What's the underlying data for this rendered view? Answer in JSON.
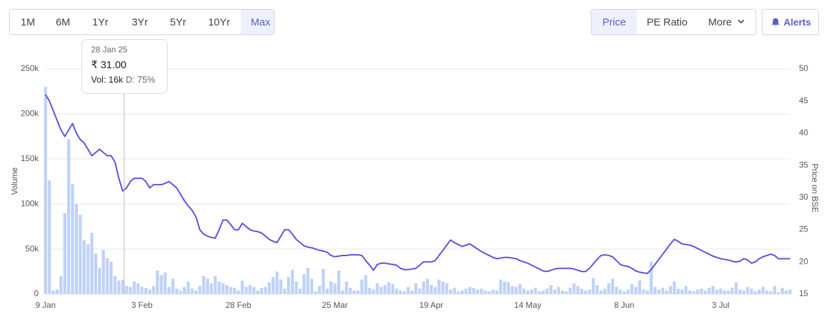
{
  "controls": {
    "ranges": [
      "1M",
      "6M",
      "1Yr",
      "3Yr",
      "5Yr",
      "10Yr",
      "Max"
    ],
    "views": [
      "Price",
      "PE Ratio",
      "More"
    ],
    "alerts": "Alerts"
  },
  "chart_data": {
    "type": "combo",
    "y_label": "Volume",
    "y2_label": "Price on BSE",
    "categories": [
      "9 Jan",
      null,
      null,
      null,
      null,
      null,
      null,
      null,
      null,
      null,
      null,
      null,
      null,
      null,
      null,
      null,
      null,
      null,
      null,
      null,
      null,
      null,
      null,
      null,
      null,
      "3 Feb",
      null,
      null,
      null,
      null,
      null,
      null,
      null,
      null,
      null,
      null,
      null,
      null,
      null,
      null,
      null,
      null,
      null,
      null,
      null,
      null,
      null,
      null,
      null,
      null,
      "28 Feb",
      null,
      null,
      null,
      null,
      null,
      null,
      null,
      null,
      null,
      null,
      null,
      null,
      null,
      null,
      null,
      null,
      null,
      null,
      null,
      null,
      null,
      null,
      null,
      null,
      "25 Mar",
      null,
      null,
      null,
      null,
      null,
      null,
      null,
      null,
      null,
      null,
      null,
      null,
      null,
      null,
      null,
      null,
      null,
      null,
      null,
      null,
      null,
      null,
      null,
      null,
      "19 Apr",
      null,
      null,
      null,
      null,
      null,
      null,
      null,
      null,
      null,
      null,
      null,
      null,
      null,
      null,
      null,
      null,
      null,
      null,
      null,
      null,
      null,
      null,
      null,
      null,
      "14 May",
      null,
      null,
      null,
      null,
      null,
      null,
      null,
      null,
      null,
      null,
      null,
      null,
      null,
      null,
      null,
      null,
      null,
      null,
      null,
      null,
      null,
      null,
      null,
      null,
      "8 Jun",
      null,
      null,
      null,
      null,
      null,
      null,
      null,
      null,
      null,
      null,
      null,
      null,
      null,
      null,
      null,
      null,
      null,
      null,
      null,
      null,
      null,
      null,
      null,
      null,
      "3 Jul",
      null,
      null,
      null,
      null,
      null,
      null,
      null,
      null,
      null,
      null,
      null,
      null,
      null,
      null,
      null,
      null,
      null,
      null
    ],
    "series": [
      {
        "type": "bar",
        "axis": "y",
        "color": "#bfd2f8",
        "values": [
          230000,
          126000,
          4000,
          5000,
          20000,
          90000,
          172000,
          122000,
          100000,
          88000,
          60000,
          55000,
          68000,
          45000,
          29000,
          49000,
          40000,
          36000,
          20000,
          15000,
          16000,
          9000,
          8000,
          14000,
          12000,
          8000,
          7000,
          5000,
          9000,
          26000,
          21000,
          24000,
          8000,
          17000,
          6000,
          4000,
          8000,
          14000,
          6000,
          4000,
          9000,
          20000,
          17000,
          12000,
          20000,
          14000,
          12000,
          10000,
          8000,
          7000,
          4000,
          15000,
          8000,
          10000,
          8000,
          4000,
          7000,
          8000,
          13000,
          19000,
          25000,
          16000,
          6000,
          19000,
          27000,
          14000,
          6000,
          22000,
          29000,
          17000,
          3000,
          9000,
          28000,
          6000,
          14000,
          12000,
          26000,
          4000,
          14000,
          7000,
          4000,
          4000,
          16000,
          21000,
          7000,
          5000,
          12000,
          8000,
          10000,
          13000,
          11000,
          6000,
          4000,
          3000,
          8000,
          4000,
          12000,
          6000,
          14000,
          17000,
          10000,
          8000,
          16000,
          14000,
          12000,
          5000,
          7000,
          3000,
          4000,
          6000,
          8000,
          7000,
          5000,
          6000,
          4000,
          3000,
          5000,
          4000,
          16000,
          14000,
          13000,
          9000,
          8000,
          11000,
          6000,
          4000,
          5000,
          7000,
          3000,
          4000,
          6000,
          10000,
          5000,
          8000,
          4000,
          3000,
          7000,
          12000,
          9000,
          6000,
          4000,
          5000,
          18000,
          10000,
          4000,
          6000,
          12000,
          17000,
          8000,
          5000,
          3000,
          5000,
          11000,
          8000,
          15000,
          5000,
          4000,
          36000,
          8000,
          5000,
          7000,
          4000,
          9000,
          14000,
          6000,
          5000,
          9000,
          4000,
          3000,
          5000,
          6000,
          4000,
          7000,
          9000,
          5000,
          6000,
          4000,
          4000,
          7000,
          13000,
          5000,
          4000,
          8000,
          6000,
          3000,
          5000,
          8000,
          4000,
          3000,
          9000,
          2000,
          7000,
          4000,
          5000
        ]
      },
      {
        "type": "line",
        "axis": "y2",
        "color": "#5b50e0",
        "values": [
          46,
          45,
          43.5,
          42,
          40.5,
          39.5,
          40.5,
          41.5,
          40,
          39,
          38.5,
          37.5,
          36.5,
          37,
          37.5,
          37,
          36.5,
          36.5,
          35.5,
          33,
          31,
          31.5,
          32.5,
          33,
          33,
          33,
          32.5,
          31.5,
          32,
          32,
          32,
          32.2,
          32.5,
          32,
          31.5,
          30.5,
          29.5,
          28.7,
          28,
          27,
          25,
          24.3,
          24,
          23.8,
          23.7,
          25,
          26.5,
          26.5,
          25.8,
          25,
          25,
          26,
          25.5,
          25,
          24.8,
          24.7,
          24.5,
          24,
          23.5,
          23.2,
          23,
          24,
          25,
          25,
          24.3,
          23.5,
          23,
          22.5,
          22.3,
          22.2,
          22,
          21.8,
          21.7,
          21.5,
          21,
          20.8,
          20.9,
          21,
          21,
          21.1,
          21.1,
          21.1,
          21,
          20.2,
          19.5,
          18.7,
          19.6,
          19.8,
          19.8,
          19.7,
          19.6,
          19.5,
          19,
          18.8,
          18.8,
          18.9,
          19,
          19.5,
          20,
          20,
          20,
          20.2,
          21,
          21.8,
          22.6,
          23.4,
          23,
          22.7,
          22.4,
          22.6,
          22.8,
          22.4,
          22,
          21.6,
          21.3,
          21,
          20.7,
          20.5,
          20.6,
          20.7,
          20.7,
          20.6,
          20.5,
          20.2,
          20,
          19.8,
          19.5,
          19.2,
          18.9,
          18.6,
          18.5,
          18.7,
          18.9,
          19,
          19,
          19,
          19,
          18.9,
          18.7,
          18.5,
          18.5,
          19,
          19.7,
          20.4,
          21,
          21.1,
          21,
          20.8,
          20.2,
          19.6,
          19.4,
          19.3,
          19,
          18.6,
          18.4,
          18.3,
          18.2,
          18.8,
          19.6,
          20.4,
          21.2,
          22,
          22.8,
          23.5,
          23.2,
          22.8,
          22.7,
          22.6,
          22.4,
          22.1,
          21.8,
          21.5,
          21.2,
          20.9,
          20.7,
          20.5,
          20.4,
          20.3,
          20.1,
          20,
          20.1,
          20.5,
          20.3,
          19.8,
          20,
          20.5,
          20.8,
          21,
          21.2,
          21,
          20.5,
          20.5,
          20.5,
          20.5
        ]
      }
    ],
    "ylim": [
      0,
      250000
    ],
    "yticks": [
      {
        "value": 0,
        "label": "0"
      },
      {
        "value": 50000,
        "label": "50k"
      },
      {
        "value": 100000,
        "label": "100k"
      },
      {
        "value": 150000,
        "label": "150k"
      },
      {
        "value": 200000,
        "label": "200k"
      },
      {
        "value": 250000,
        "label": "250k"
      }
    ],
    "y2lim": [
      15,
      50
    ],
    "y2ticks": [
      15,
      20,
      25,
      30,
      35,
      40,
      45,
      50
    ],
    "grid": true,
    "tooltip": {
      "date": "28 Jan 25",
      "price": "₹ 31.00",
      "volume": "Vol: 16k",
      "delivery": "D: 75%"
    }
  }
}
